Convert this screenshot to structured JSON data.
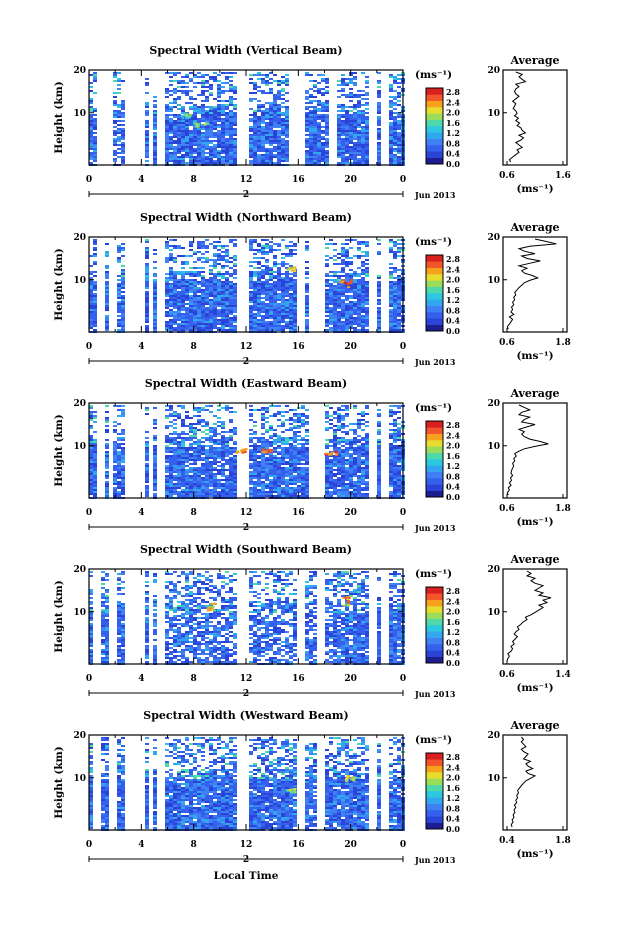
{
  "xlabel": "Local Time",
  "chart_data": [
    {
      "type": "heatmap",
      "title": "Spectral Width (Vertical Beam)",
      "ylabel": "Height (km)",
      "x_ticks": [
        "0",
        "4",
        "8",
        "12",
        "16",
        "20",
        "0"
      ],
      "y_ticks": [
        "20",
        "10"
      ],
      "date_marker": "2",
      "date_label": "Jun 2013",
      "colorbar": {
        "unit": "(ms⁻¹)",
        "ticks": [
          "2.8",
          "2.4",
          "2.0",
          "1.6",
          "1.2",
          "0.8",
          "0.4",
          "0.0"
        ]
      },
      "profile": {
        "title": "Average",
        "xlabel": "(ms⁻¹)",
        "x_ticks": [
          "0.6",
          "1.6"
        ],
        "y_ticks": [
          "20",
          "10"
        ],
        "xlim": [
          0.6,
          1.6
        ],
        "x": [
          0.72,
          0.7,
          0.75,
          0.8,
          0.85,
          0.82,
          0.9,
          0.85,
          0.8,
          0.88,
          0.92,
          0.85,
          0.95,
          0.9,
          0.88,
          0.82,
          0.86,
          0.8,
          0.84,
          0.78,
          0.82,
          0.8,
          0.76,
          0.78,
          0.8,
          0.75,
          0.8,
          0.85,
          0.8,
          0.78,
          0.8,
          0.85,
          0.8,
          0.95,
          0.9,
          0.85,
          0.9,
          0.8
        ]
      }
    },
    {
      "type": "heatmap",
      "title": "Spectral Width (Northward Beam)",
      "ylabel": "Height (km)",
      "x_ticks": [
        "0",
        "4",
        "8",
        "12",
        "16",
        "20",
        "0"
      ],
      "y_ticks": [
        "20",
        "10"
      ],
      "date_marker": "2",
      "date_label": "Jun 2013",
      "colorbar": {
        "unit": "(ms⁻¹)",
        "ticks": [
          "2.8",
          "2.4",
          "2.0",
          "1.6",
          "1.2",
          "0.8",
          "0.4",
          "0.0"
        ]
      },
      "profile": {
        "title": "Average",
        "xlabel": "(ms⁻¹)",
        "x_ticks": [
          "0.6",
          "1.8"
        ],
        "y_ticks": [
          "20",
          "10"
        ],
        "xlim": [
          0.6,
          1.8
        ],
        "x": [
          0.7,
          0.68,
          0.72,
          0.75,
          0.78,
          0.72,
          0.8,
          0.75,
          0.78,
          0.76,
          0.8,
          0.78,
          0.82,
          0.8,
          0.84,
          0.82,
          0.86,
          0.9,
          0.95,
          1.0,
          1.1,
          1.25,
          1.15,
          1.0,
          0.95,
          1.05,
          0.9,
          1.1,
          1.3,
          1.05,
          0.95,
          1.2,
          1.0,
          0.9,
          1.1,
          1.6,
          1.4,
          1.2
        ]
      }
    },
    {
      "type": "heatmap",
      "title": "Spectral Width (Eastward Beam)",
      "ylabel": "Height (km)",
      "x_ticks": [
        "0",
        "4",
        "8",
        "12",
        "16",
        "20",
        "0"
      ],
      "y_ticks": [
        "20",
        "10"
      ],
      "date_marker": "2",
      "date_label": "Jun 2013",
      "colorbar": {
        "unit": "(ms⁻¹)",
        "ticks": [
          "2.8",
          "2.4",
          "2.0",
          "1.6",
          "1.2",
          "0.8",
          "0.4",
          "0.0"
        ]
      },
      "profile": {
        "title": "Average",
        "xlabel": "(ms⁻¹)",
        "x_ticks": [
          "0.6",
          "1.8"
        ],
        "y_ticks": [
          "20",
          "10"
        ],
        "xlim": [
          0.6,
          1.8
        ],
        "x": [
          0.7,
          0.68,
          0.72,
          0.7,
          0.75,
          0.72,
          0.76,
          0.74,
          0.78,
          0.75,
          0.76,
          0.78,
          0.8,
          0.78,
          0.82,
          0.8,
          0.85,
          0.82,
          0.9,
          1.0,
          1.2,
          1.45,
          1.3,
          1.1,
          1.0,
          0.95,
          1.0,
          0.9,
          1.05,
          1.2,
          0.95,
          1.0,
          1.1,
          0.9,
          0.95,
          1.1,
          1.0,
          0.9
        ]
      }
    },
    {
      "type": "heatmap",
      "title": "Spectral Width (Southward Beam)",
      "ylabel": "Height (km)",
      "x_ticks": [
        "0",
        "4",
        "8",
        "12",
        "16",
        "20",
        "0"
      ],
      "y_ticks": [
        "20",
        "10"
      ],
      "date_marker": "2",
      "date_label": "Jun 2013",
      "colorbar": {
        "unit": "(ms⁻¹)",
        "ticks": [
          "2.8",
          "2.4",
          "2.0",
          "1.6",
          "1.2",
          "0.8",
          "0.4",
          "0.0"
        ]
      },
      "profile": {
        "title": "Average",
        "xlabel": "(ms⁻¹)",
        "x_ticks": [
          "0.6",
          "1.4"
        ],
        "y_ticks": [
          "20",
          "10"
        ],
        "xlim": [
          0.6,
          1.4
        ],
        "x": [
          0.65,
          0.66,
          0.68,
          0.66,
          0.7,
          0.72,
          0.7,
          0.74,
          0.72,
          0.75,
          0.78,
          0.74,
          0.76,
          0.8,
          0.78,
          0.82,
          0.85,
          0.9,
          0.88,
          0.95,
          1.0,
          1.05,
          1.1,
          1.05,
          1.15,
          1.1,
          1.2,
          1.05,
          1.1,
          1.0,
          1.05,
          1.1,
          1.0,
          0.95,
          1.0,
          0.9,
          0.95,
          0.9
        ]
      }
    },
    {
      "type": "heatmap",
      "title": "Spectral Width (Westward Beam)",
      "ylabel": "Height (km)",
      "x_ticks": [
        "0",
        "4",
        "8",
        "12",
        "16",
        "20",
        "0"
      ],
      "y_ticks": [
        "20",
        "10"
      ],
      "date_marker": "2",
      "date_label": "Jun 2013",
      "colorbar": {
        "unit": "(ms⁻¹)",
        "ticks": [
          "2.8",
          "2.4",
          "2.0",
          "1.6",
          "1.2",
          "0.8",
          "0.4",
          "0.0"
        ]
      },
      "profile": {
        "title": "Average",
        "xlabel": "(ms⁻¹)",
        "x_ticks": [
          "0.4",
          "1.8"
        ],
        "y_ticks": [
          "20",
          "10"
        ],
        "xlim": [
          0.4,
          1.8
        ],
        "x": [
          0.6,
          0.58,
          0.62,
          0.6,
          0.64,
          0.62,
          0.66,
          0.64,
          0.68,
          0.65,
          0.7,
          0.68,
          0.72,
          0.7,
          0.74,
          0.72,
          0.76,
          0.8,
          0.85,
          0.9,
          1.0,
          1.1,
          0.95,
          0.9,
          1.05,
          0.95,
          0.9,
          1.0,
          0.85,
          0.9,
          0.95,
          0.85,
          0.8,
          0.9,
          0.85,
          0.8,
          0.85,
          0.8
        ]
      }
    }
  ]
}
